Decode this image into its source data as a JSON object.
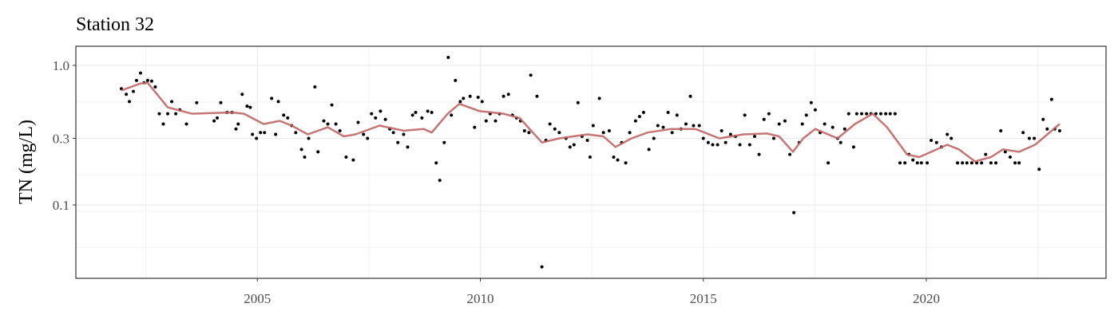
{
  "chart_data": {
    "type": "scatter",
    "title": "Station 32",
    "y_label": "TN (mg/L)",
    "log_y": true,
    "grid": true,
    "xlim": [
      2000.93,
      2024.03
    ],
    "xticks": [
      2005,
      2010,
      2015,
      2020
    ],
    "ylim": [
      0.0298,
      1.37
    ],
    "yticks": [
      {
        "value": 1,
        "label": "1.0"
      },
      0.3,
      0.1
    ],
    "series": [
      {
        "type": "scatter",
        "color": "#000000",
        "x": [
          2001.95,
          2002.06,
          2002.13,
          2002.22,
          2002.29,
          2002.38,
          2002.46,
          2002.54,
          2002.63,
          2002.71,
          2002.8,
          2002.89,
          2002.99,
          2003.08,
          2003.17,
          2003.26,
          2003.41,
          2003.64,
          2004.03,
          2004.1,
          2004.18,
          2004.32,
          2004.43,
          2004.52,
          2004.57,
          2004.66,
          2004.77,
          2004.84,
          2004.89,
          2004.98,
          2005.07,
          2005.16,
          2005.32,
          2005.41,
          2005.47,
          2005.59,
          2005.68,
          2005.77,
          2005.86,
          2005.99,
          2006.06,
          2006.15,
          2006.29,
          2006.36,
          2006.49,
          2006.58,
          2006.67,
          2006.76,
          2006.85,
          2006.99,
          2007.15,
          2007.26,
          2007.38,
          2007.47,
          2007.56,
          2007.65,
          2007.76,
          2007.87,
          2007.97,
          2008.05,
          2008.15,
          2008.28,
          2008.37,
          2008.48,
          2008.55,
          2008.69,
          2008.82,
          2008.91,
          2009.01,
          2009.09,
          2009.19,
          2009.28,
          2009.35,
          2009.44,
          2009.55,
          2009.62,
          2009.77,
          2009.87,
          2009.95,
          2010.04,
          2010.13,
          2010.22,
          2010.34,
          2010.43,
          2010.52,
          2010.63,
          2010.72,
          2010.81,
          2010.9,
          2010.99,
          2011.09,
          2011.13,
          2011.27,
          2011.38,
          2011.47,
          2011.56,
          2011.67,
          2011.77,
          2011.92,
          2012.01,
          2012.1,
          2012.19,
          2012.28,
          2012.4,
          2012.46,
          2012.53,
          2012.67,
          2012.76,
          2012.89,
          2012.99,
          2013.08,
          2013.17,
          2013.26,
          2013.35,
          2013.48,
          2013.57,
          2013.66,
          2013.78,
          2013.89,
          2013.98,
          2014.1,
          2014.21,
          2014.3,
          2014.41,
          2014.5,
          2014.61,
          2014.71,
          2014.78,
          2014.91,
          2015.0,
          2015.11,
          2015.21,
          2015.32,
          2015.41,
          2015.5,
          2015.61,
          2015.72,
          2015.82,
          2015.93,
          2016.04,
          2016.15,
          2016.25,
          2016.36,
          2016.47,
          2016.58,
          2016.7,
          2016.83,
          2016.94,
          2017.03,
          2017.15,
          2017.22,
          2017.31,
          2017.42,
          2017.51,
          2017.62,
          2017.72,
          2017.8,
          2017.9,
          2018.01,
          2018.08,
          2018.17,
          2018.26,
          2018.37,
          2018.44,
          2018.55,
          2018.66,
          2018.76,
          2018.87,
          2018.98,
          2019.09,
          2019.19,
          2019.3,
          2019.41,
          2019.52,
          2019.61,
          2019.7,
          2019.8,
          2019.89,
          2020.02,
          2020.11,
          2020.23,
          2020.34,
          2020.47,
          2020.56,
          2020.7,
          2020.81,
          2020.91,
          2021.02,
          2021.13,
          2021.24,
          2021.33,
          2021.45,
          2021.56,
          2021.67,
          2021.77,
          2021.88,
          2021.99,
          2022.08,
          2022.17,
          2022.31,
          2022.42,
          2022.53,
          2022.62,
          2022.71,
          2022.81,
          2022.88,
          2022.99
        ],
        "values": [
          0.68,
          0.62,
          0.55,
          0.65,
          0.78,
          0.88,
          0.75,
          0.78,
          0.77,
          0.7,
          0.45,
          0.38,
          0.45,
          0.55,
          0.45,
          0.48,
          0.38,
          0.54,
          0.4,
          0.42,
          0.54,
          0.46,
          0.46,
          0.35,
          0.38,
          0.62,
          0.51,
          0.5,
          0.32,
          0.3,
          0.33,
          0.33,
          0.58,
          0.32,
          0.55,
          0.44,
          0.42,
          0.37,
          0.33,
          0.25,
          0.22,
          0.3,
          0.7,
          0.24,
          0.4,
          0.38,
          0.52,
          0.38,
          0.34,
          0.22,
          0.21,
          0.39,
          0.32,
          0.3,
          0.45,
          0.42,
          0.47,
          0.41,
          0.35,
          0.33,
          0.28,
          0.32,
          0.26,
          0.44,
          0.46,
          0.42,
          0.47,
          0.46,
          0.2,
          0.15,
          0.28,
          1.14,
          0.44,
          0.78,
          0.55,
          0.58,
          0.6,
          0.36,
          0.59,
          0.55,
          0.4,
          0.45,
          0.4,
          0.45,
          0.6,
          0.62,
          0.44,
          0.42,
          0.4,
          0.34,
          0.33,
          0.85,
          0.6,
          0.036,
          0.29,
          0.38,
          0.35,
          0.33,
          0.3,
          0.26,
          0.27,
          0.54,
          0.31,
          0.29,
          0.22,
          0.37,
          0.58,
          0.33,
          0.34,
          0.22,
          0.21,
          0.28,
          0.2,
          0.33,
          0.4,
          0.43,
          0.46,
          0.25,
          0.3,
          0.37,
          0.36,
          0.46,
          0.33,
          0.44,
          0.35,
          0.38,
          0.6,
          0.37,
          0.37,
          0.3,
          0.28,
          0.27,
          0.27,
          0.34,
          0.28,
          0.32,
          0.31,
          0.27,
          0.44,
          0.27,
          0.31,
          0.23,
          0.41,
          0.45,
          0.3,
          0.38,
          0.4,
          0.23,
          0.088,
          0.28,
          0.38,
          0.44,
          0.54,
          0.48,
          0.33,
          0.38,
          0.2,
          0.36,
          0.3,
          0.28,
          0.35,
          0.45,
          0.26,
          0.45,
          0.45,
          0.45,
          0.45,
          0.45,
          0.45,
          0.45,
          0.45,
          0.45,
          0.2,
          0.2,
          0.23,
          0.21,
          0.2,
          0.2,
          0.2,
          0.29,
          0.28,
          0.26,
          0.32,
          0.3,
          0.2,
          0.2,
          0.2,
          0.2,
          0.2,
          0.2,
          0.23,
          0.2,
          0.2,
          0.34,
          0.24,
          0.22,
          0.2,
          0.2,
          0.33,
          0.3,
          0.3,
          0.18,
          0.41,
          0.35,
          0.57,
          0.35,
          0.34
        ]
      },
      {
        "type": "line",
        "color": "#c06666",
        "x": [
          2001.95,
          2002.37,
          2002.54,
          2002.99,
          2003.53,
          2004.43,
          2004.7,
          2005.14,
          2005.5,
          2005.77,
          2006.13,
          2006.58,
          2006.94,
          2007.2,
          2007.74,
          2008.28,
          2008.73,
          2008.91,
          2009.27,
          2009.53,
          2009.98,
          2010.52,
          2010.88,
          2011.38,
          2011.77,
          2012.4,
          2012.76,
          2013.03,
          2013.39,
          2013.75,
          2014.28,
          2014.82,
          2015.36,
          2015.9,
          2016.43,
          2016.7,
          2017.01,
          2017.24,
          2017.51,
          2018.01,
          2018.4,
          2018.8,
          2019.12,
          2019.57,
          2019.84,
          2020.11,
          2020.47,
          2020.73,
          2021.09,
          2021.45,
          2021.72,
          2022.08,
          2022.44,
          2022.99
        ],
        "values": [
          0.66,
          0.74,
          0.75,
          0.5,
          0.45,
          0.46,
          0.45,
          0.38,
          0.4,
          0.37,
          0.32,
          0.36,
          0.31,
          0.32,
          0.37,
          0.34,
          0.35,
          0.33,
          0.45,
          0.53,
          0.47,
          0.45,
          0.42,
          0.28,
          0.3,
          0.32,
          0.31,
          0.26,
          0.3,
          0.33,
          0.35,
          0.35,
          0.3,
          0.32,
          0.325,
          0.31,
          0.24,
          0.3,
          0.35,
          0.3,
          0.38,
          0.45,
          0.36,
          0.23,
          0.22,
          0.24,
          0.27,
          0.25,
          0.205,
          0.22,
          0.25,
          0.24,
          0.27,
          0.38
        ]
      }
    ]
  }
}
